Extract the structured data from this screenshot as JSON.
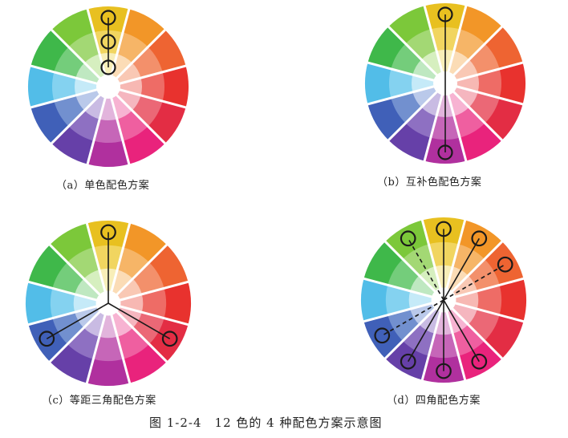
{
  "figure": {
    "title": "图 1-2-4　12 色的 4 种配色方案示意图",
    "segment_colors": {
      "yellow": [
        "#e8c020",
        "#f1d560",
        "#f8eeb8"
      ],
      "orange": [
        "#f29628",
        "#f6b567",
        "#fbdcb6"
      ],
      "red-orange": [
        "#ee6432",
        "#f3906b",
        "#f9c8b4"
      ],
      "red": [
        "#e8322e",
        "#ee6c66",
        "#f7b8b3"
      ],
      "crimson": [
        "#e32d44",
        "#eb6876",
        "#f5b6bf"
      ],
      "magenta": [
        "#e9237c",
        "#ef5fa0",
        "#f7b3d2"
      ],
      "purple": [
        "#b0309e",
        "#c666b8",
        "#e2b4dc"
      ],
      "violet": [
        "#6640a8",
        "#8e70c2",
        "#c9bbe3"
      ],
      "blue": [
        "#4060b8",
        "#7290cf",
        "#bac9ea"
      ],
      "cyan": [
        "#52bde8",
        "#84d2f0",
        "#c5eaf8"
      ],
      "green": [
        "#3fb84a",
        "#74cd7b",
        "#bfe8c1"
      ],
      "yellow-green": [
        "#7cc83a",
        "#a3d874",
        "#d6efbf"
      ]
    },
    "panels": [
      {
        "id": "a",
        "caption": "（a）单色配色方案",
        "scheme": "monochrome"
      },
      {
        "id": "b",
        "caption": "（b）互补色配色方案",
        "scheme": "complementary"
      },
      {
        "id": "c",
        "caption": "（c）等距三角配色方案",
        "scheme": "triadic"
      },
      {
        "id": "d",
        "caption": "（d）四角配色方案",
        "scheme": "tetradic"
      }
    ]
  }
}
